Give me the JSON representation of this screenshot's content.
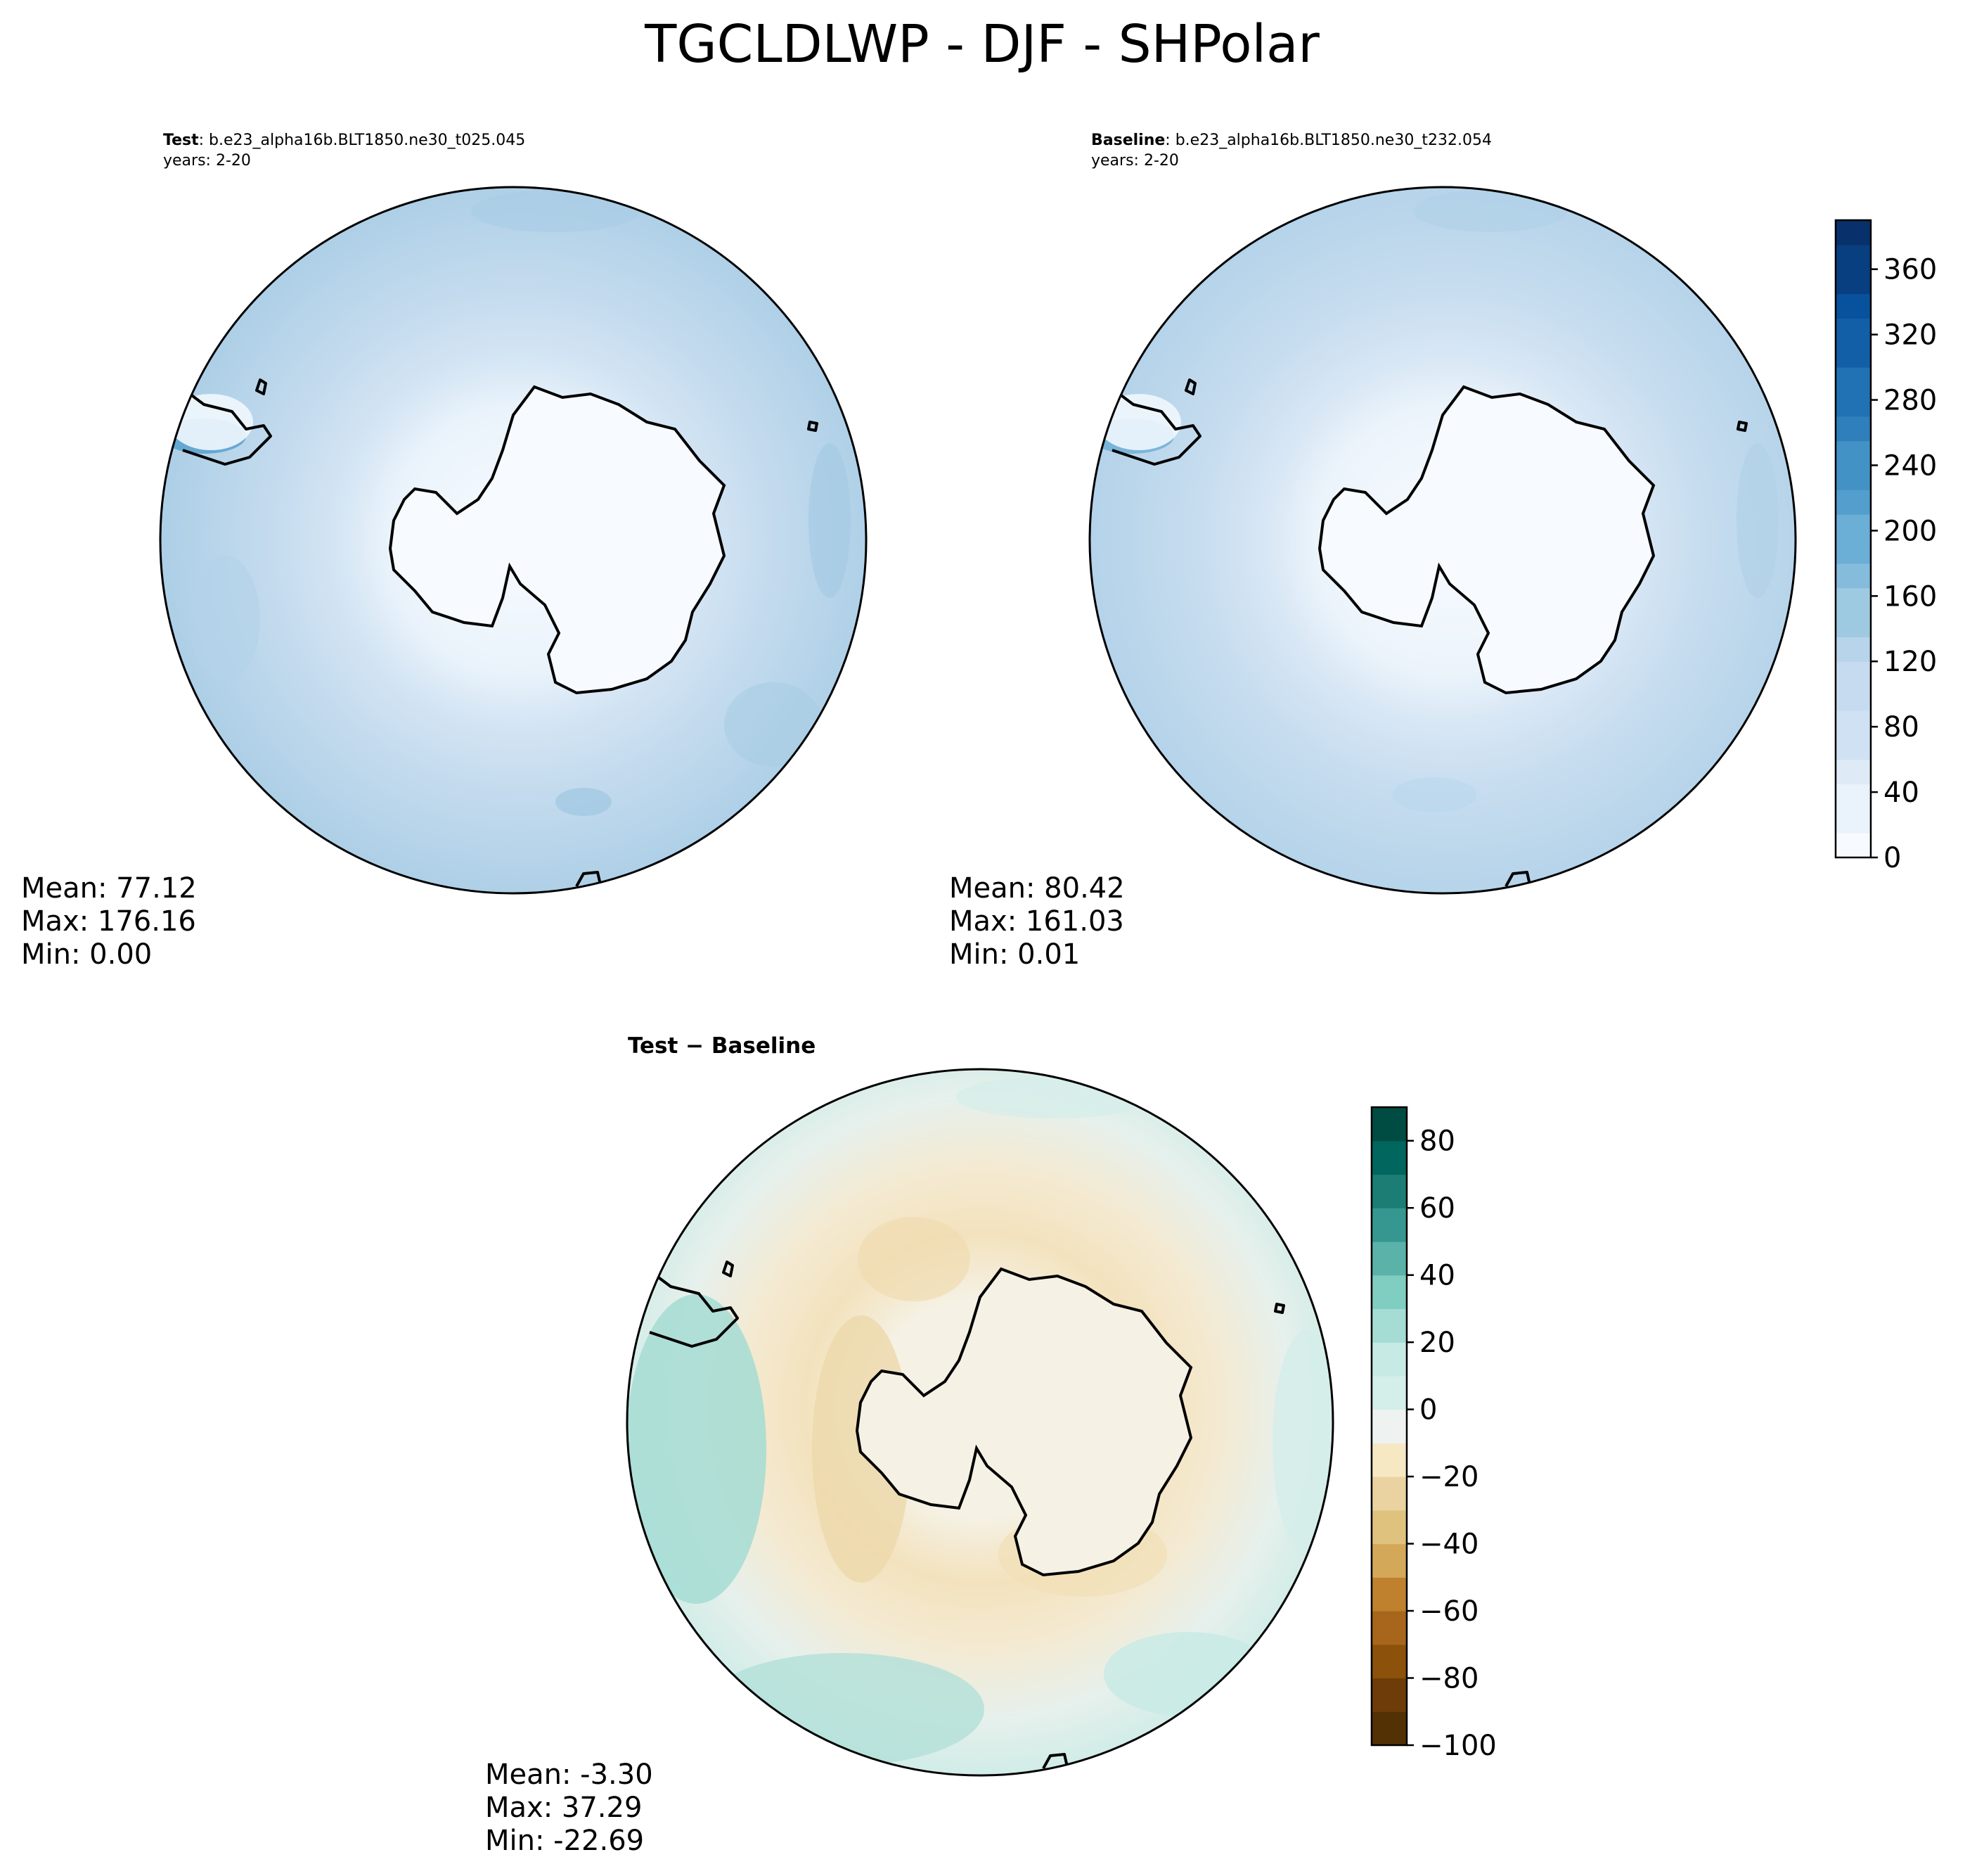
{
  "figure": {
    "title": "TGCLDLWP - DJF - SHPolar"
  },
  "panels": [
    {
      "id": "test",
      "label_bold": "Test",
      "label_rest": ": b.e23_alpha16b.BLT1850.ne30_t025.045",
      "years": "years: 2-20",
      "stats": {
        "mean": "Mean: 77.12",
        "max": "Max: 176.16",
        "min": "Min:  0.00"
      }
    },
    {
      "id": "baseline",
      "label_bold": "Baseline",
      "label_rest": ": b.e23_alpha16b.BLT1850.ne30_t232.054",
      "years": "years: 2-20",
      "stats": {
        "mean": "Mean: 80.42",
        "max": "Max: 161.03",
        "min": "Min:  0.01"
      }
    },
    {
      "id": "diff",
      "title": "Test − Baseline",
      "stats": {
        "mean": "Mean: -3.30",
        "max": "Max: 37.29",
        "min": "Min: -22.69"
      }
    }
  ],
  "chart_data": [
    {
      "type": "heatmap",
      "projection": "south polar stereographic",
      "panel": "test",
      "field_range": [
        0,
        390
      ],
      "mean": 77.12,
      "max": 176.16,
      "min": 0.0
    },
    {
      "type": "heatmap",
      "projection": "south polar stereographic",
      "panel": "baseline",
      "field_range": [
        0,
        390
      ],
      "mean": 80.42,
      "max": 161.03,
      "min": 0.01
    },
    {
      "type": "heatmap",
      "projection": "south polar stereographic",
      "panel": "diff",
      "field_range": [
        -100,
        90
      ],
      "mean": -3.3,
      "max": 37.29,
      "min": -22.69
    }
  ],
  "colorbars": {
    "main": {
      "colormap": "Blues",
      "range": [
        0,
        390
      ],
      "levels": 26,
      "ticks": [
        "0",
        "40",
        "80",
        "120",
        "160",
        "200",
        "240",
        "280",
        "320",
        "360"
      ],
      "tick_values": [
        0,
        40,
        80,
        120,
        160,
        200,
        240,
        280,
        320,
        360
      ]
    },
    "diff": {
      "colormap": "BrBG",
      "range": [
        -100,
        90
      ],
      "levels": 19,
      "ticks": [
        "−100",
        "−80",
        "−60",
        "−40",
        "−20",
        "0",
        "20",
        "40",
        "60",
        "80"
      ],
      "tick_values": [
        -100,
        -80,
        -60,
        -40,
        -20,
        0,
        20,
        40,
        60,
        80
      ]
    }
  },
  "colors": {
    "blues": [
      "#f7fbff",
      "#eaf3fb",
      "#deebf7",
      "#cfe1f2",
      "#c6dbef",
      "#b7d4ea",
      "#9ecae1",
      "#85bcdc",
      "#6baed6",
      "#539ecd",
      "#4292c6",
      "#2f7fbc",
      "#2171b5",
      "#135fa7",
      "#08519c",
      "#083f80",
      "#08306b"
    ],
    "brbg": [
      "#543005",
      "#6d3c08",
      "#8c510a",
      "#a8661d",
      "#bf812d",
      "#d4a859",
      "#dfc27d",
      "#ead3a0",
      "#f6e8c3",
      "#f5f0e2",
      "#eef3f1",
      "#d4eeea",
      "#c7eae5",
      "#a5dcd3",
      "#80cdc1",
      "#5ab2a8",
      "#35978f",
      "#1b7d74",
      "#01665e",
      "#004c42"
    ]
  }
}
